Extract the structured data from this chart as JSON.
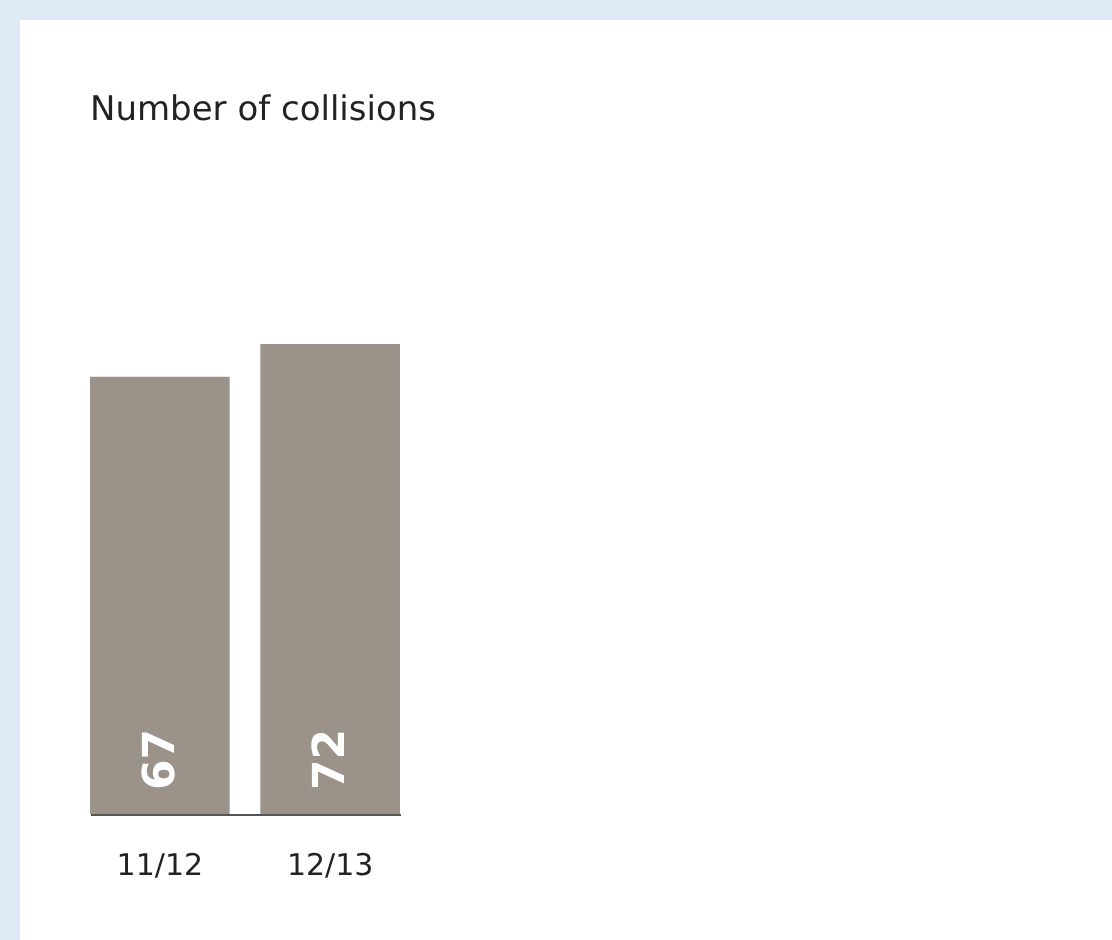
{
  "chart_data": {
    "type": "bar",
    "title": "Number of collisions",
    "categories": [
      "11/12",
      "12/13"
    ],
    "values": [
      67,
      72
    ],
    "color": "#9b928a",
    "data_labels": true
  }
}
